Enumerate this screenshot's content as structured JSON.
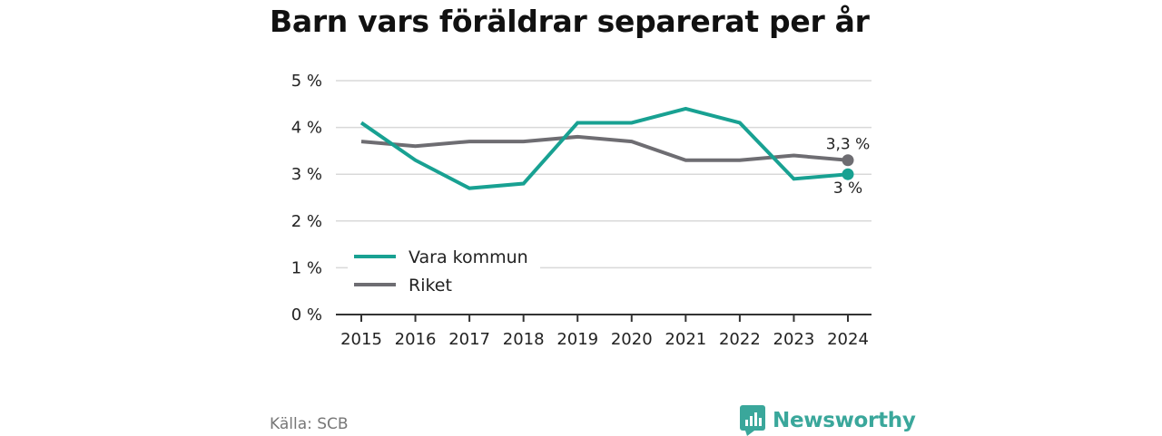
{
  "title": "Barn vars föräldrar separerat per år",
  "source": "Källa: SCB",
  "brand": {
    "name": "Newsworthy",
    "logo_icon": "newsworthy-chart-logo-icon",
    "color": "#3aa79b"
  },
  "chart_data": {
    "type": "line",
    "x": [
      "2015",
      "2016",
      "2017",
      "2018",
      "2019",
      "2020",
      "2021",
      "2022",
      "2023",
      "2024"
    ],
    "ylim": [
      0,
      5
    ],
    "yticks": [
      0,
      1,
      2,
      3,
      4,
      5
    ],
    "ytick_labels": [
      "0 %",
      "1 %",
      "2 %",
      "3 %",
      "4 %",
      "5 %"
    ],
    "grid": true,
    "legend_position": "lower-left",
    "series": [
      {
        "name": "Vara kommun",
        "color": "#18a192",
        "values": [
          4.1,
          3.3,
          2.7,
          2.8,
          4.1,
          4.1,
          4.4,
          4.1,
          2.9,
          3.0
        ],
        "end_label": "3 %"
      },
      {
        "name": "Riket",
        "color": "#6e6d72",
        "values": [
          3.7,
          3.6,
          3.7,
          3.7,
          3.8,
          3.7,
          3.3,
          3.3,
          3.4,
          3.3
        ],
        "end_label": "3,3 %"
      }
    ]
  }
}
